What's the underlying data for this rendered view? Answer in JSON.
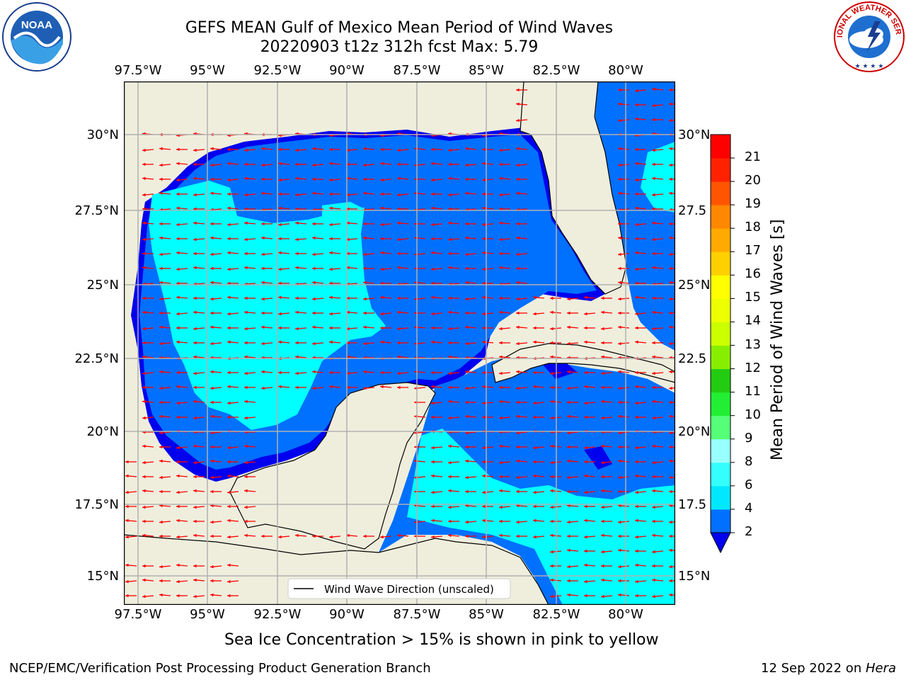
{
  "header": {
    "title_line1": "GEFS MEAN Gulf of Mexico Mean Period of Wind Waves",
    "title_line2": "20220903 t12z 312h fcst   Max: 5.79"
  },
  "logos": {
    "left": "NOAA",
    "right": "NATIONAL WEATHER SERVICE"
  },
  "axes": {
    "lon_labels": [
      "97.5°W",
      "95°W",
      "92.5°W",
      "90°W",
      "87.5°W",
      "85°W",
      "82.5°W",
      "80°W"
    ],
    "lat_labels_left": [
      "30°N",
      "27.5°N",
      "25°N",
      "22.5°N",
      "20°N",
      "17.5°N",
      "15°N"
    ],
    "lat_labels_right": [
      "30°N",
      "27.5",
      "25°N",
      "22.5",
      "20°N",
      "17.5",
      "15°N"
    ]
  },
  "legend": {
    "label": "Wind Wave Direction (unscaled)"
  },
  "colorbar": {
    "title": "Mean Period of Wind Waves [s]",
    "ticks": [
      "2",
      "4",
      "6",
      "8",
      "9",
      "10",
      "11",
      "12",
      "13",
      "14",
      "15",
      "16",
      "17",
      "18",
      "19",
      "20",
      "21"
    ],
    "colors": [
      "#0070ff",
      "#00e8ff",
      "#33ffff",
      "#99ffff",
      "#55ff77",
      "#22ee33",
      "#22cc11",
      "#88ee00",
      "#ccff00",
      "#eeff00",
      "#ffff00",
      "#ffd000",
      "#ffaa00",
      "#ff8800",
      "#ff5500",
      "#ff2200",
      "#ff0000"
    ],
    "under_color": "#0000ee",
    "max_value": 5.79
  },
  "map_colors": {
    "land": "#efeedd",
    "sea_low": "#0000ee",
    "sea_mid": "#0070ff",
    "sea_high": "#00ffff",
    "arrows": "#ff0000",
    "grid": "#b0b0b0"
  },
  "notes": {
    "sea_ice": "Sea Ice Concentration > 15% is shown in pink to yellow"
  },
  "footer": {
    "left": "NCEP/EMC/Verification Post Processing Product Generation Branch",
    "right_date": "12 Sep 2022 on ",
    "right_host": "Hera"
  }
}
